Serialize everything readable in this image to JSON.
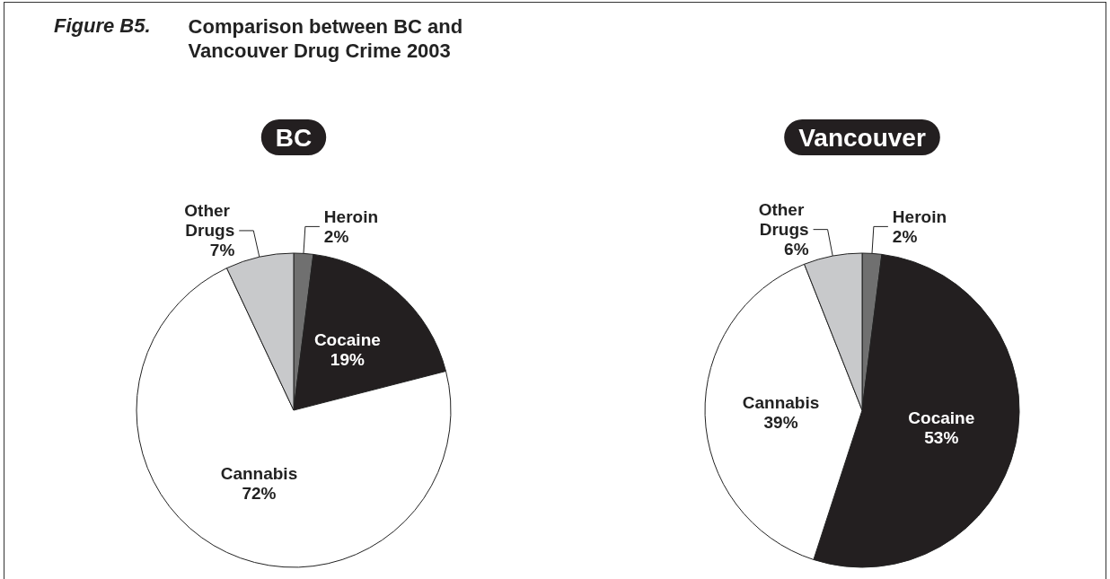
{
  "chart_data": [
    {
      "type": "pie",
      "title": "BC",
      "annotations": [
        "Figure B5.",
        "Comparison between BC and Vancouver Drug Crime 2003"
      ],
      "categories": [
        "Heroin",
        "Cocaine",
        "Cannabis",
        "Other Drugs"
      ],
      "values": [
        2,
        19,
        72,
        7
      ],
      "value_labels": [
        "2%",
        "19%",
        "72%",
        "7%"
      ],
      "colors": [
        "#707070",
        "#231f20",
        "#ffffff",
        "#c8c9cb"
      ]
    },
    {
      "type": "pie",
      "title": "Vancouver",
      "categories": [
        "Heroin",
        "Cocaine",
        "Cannabis",
        "Other Drugs"
      ],
      "values": [
        2,
        53,
        39,
        6
      ],
      "value_labels": [
        "2%",
        "53%",
        "39%",
        "6%"
      ],
      "colors": [
        "#707070",
        "#231f20",
        "#ffffff",
        "#c8c9cb"
      ]
    }
  ]
}
